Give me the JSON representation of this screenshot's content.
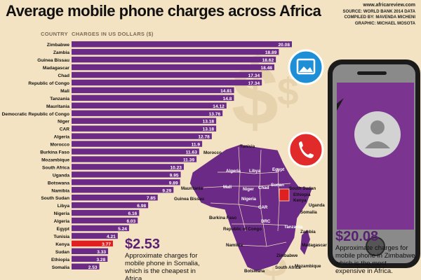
{
  "header": {
    "title": "Average mobile phone charges across Africa",
    "credits": [
      "www.africareview.com",
      "SOURCE: WORLD BANK 2014 DATA",
      "COMPILED BY: MAVENDA MICHENI",
      "GRAPHIC: MICHAEL MOSOTA"
    ]
  },
  "columns": {
    "country": "COUNTRY",
    "charges": "CHARGES IN US DOLLARS ($)"
  },
  "colors": {
    "bar": "#6b2a85",
    "highlight": "#e02020",
    "map": "#6b2a85",
    "mapKenya": "#e02020",
    "background": "#f4e3c2"
  },
  "chart_data": {
    "type": "bar",
    "orientation": "horizontal",
    "title": "Average mobile phone charges across Africa",
    "xlabel": "CHARGES IN US DOLLARS ($)",
    "ylabel": "COUNTRY",
    "xlim": [
      0,
      20.08
    ],
    "highlight": "Kenya",
    "categories": [
      "Zimbabwe",
      "Zambia",
      "Guinea Bissau",
      "Madagascar",
      "Chad",
      "Republic of Congo",
      "Mali",
      "Tanzania",
      "Mauritania",
      "Democratic Republic of Congo",
      "Niger",
      "CAR",
      "Algeria",
      "Morocco",
      "Burkina Faso",
      "Mozambique",
      "South Africa",
      "Uganda",
      "Botswana",
      "Namibia",
      "South Sudan",
      "Libya",
      "Nigeria",
      "Algeria",
      "Egypt",
      "Tunisia",
      "Kenya",
      "Sudan",
      "Ethiopia",
      "Somalia"
    ],
    "values": [
      20.08,
      18.89,
      18.62,
      18.48,
      17.34,
      17.34,
      14.81,
      14.8,
      14.12,
      13.76,
      13.18,
      13.18,
      12.78,
      11.9,
      11.63,
      11.39,
      10.23,
      9.95,
      9.89,
      9.29,
      7.85,
      6.98,
      6.16,
      6.03,
      5.24,
      4.21,
      3.77,
      3.33,
      3.28,
      2.53
    ],
    "labels": [
      "20.08",
      "18.89",
      "18.62",
      "18.48",
      "17.34",
      "17.34",
      "14.81",
      "14.8",
      "14.12",
      "13.76",
      "13.18",
      "13.18",
      "12.78",
      "11.9",
      "11.63",
      "11.39",
      "10.23",
      "9.95",
      "9.89",
      "9.29",
      "7.85",
      "6.98",
      "6.16",
      "6.03",
      "5.24",
      "4.21",
      "3.77",
      "3.33",
      "3.28",
      "2.53"
    ]
  },
  "callouts": {
    "low": {
      "amount": "$2.53",
      "text": "Approximate charges for mobile phone in Somalia, which is the cheapest in Africa."
    },
    "high": {
      "amount": "$20.08",
      "text": "Approximate charges for mobile phone in Zimbabwe, which is the most expensive in Africa."
    }
  },
  "map_labels": [
    "Tunisia",
    "Morocco",
    "Algeria",
    "Libya",
    "Egypt",
    "Mauritania",
    "Mali",
    "Niger",
    "Chad",
    "Sudan",
    "South Sudan",
    "Ethiopia",
    "Guinea Bissau",
    "Nigeria",
    "CAR",
    "Burkina Faso",
    "Somalia",
    "Uganda",
    "Kenya",
    "Republic of Congo",
    "DRC",
    "Tanzania",
    "Zambia",
    "Namibia",
    "Zimbabwe",
    "Mozambique",
    "Madagascar",
    "Botswana",
    "South Africa"
  ]
}
